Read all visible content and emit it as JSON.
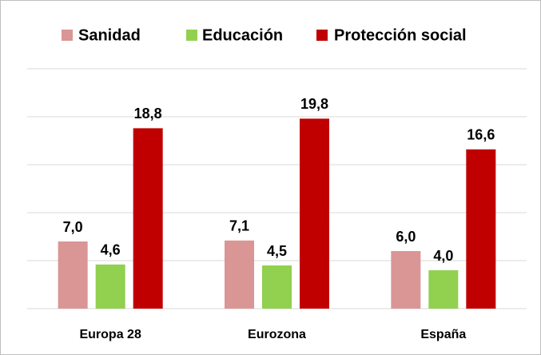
{
  "chart_data": {
    "type": "bar",
    "categories": [
      "Europa 28",
      "Eurozona",
      "España"
    ],
    "series": [
      {
        "name": "Sanidad",
        "color": "#d99694",
        "values": [
          7.0,
          7.1,
          6.0
        ],
        "value_labels": [
          "7,0",
          "7,1",
          "6,0"
        ]
      },
      {
        "name": "Educación",
        "color": "#92d050",
        "values": [
          4.6,
          4.5,
          4.0
        ],
        "value_labels": [
          "4,6",
          "4,5",
          "4,0"
        ]
      },
      {
        "name": "Protección social",
        "color": "#c00000",
        "values": [
          18.8,
          19.8,
          16.6
        ],
        "value_labels": [
          "18,8",
          "19,8",
          "16,6"
        ]
      }
    ],
    "ylim": [
      0,
      25
    ],
    "yticks": [
      0,
      5,
      10,
      15,
      20,
      25
    ],
    "grid": true,
    "legend": "top"
  }
}
